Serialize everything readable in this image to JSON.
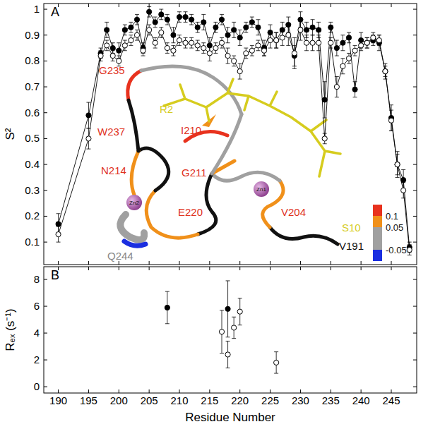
{
  "chart_data": [
    {
      "type": "line",
      "panel": "A",
      "y_label": "S²",
      "x": [
        190,
        195,
        197,
        198,
        199,
        200,
        201,
        202,
        203,
        204,
        205,
        206,
        207,
        208,
        209,
        210,
        211,
        212,
        213,
        214,
        215,
        216,
        217,
        218,
        219,
        220,
        221,
        222,
        223,
        224,
        225,
        226,
        227,
        228,
        229,
        230,
        231,
        232,
        233,
        234,
        235,
        236,
        237,
        238,
        239,
        240,
        241,
        242,
        243,
        244,
        245,
        246,
        247,
        248
      ],
      "series": [
        {
          "color": "#000000",
          "marker": "filled circle",
          "line_style": "solid",
          "values": [
            0.17,
            0.59,
            0.83,
            0.92,
            0.85,
            0.84,
            0.92,
            0.93,
            0.96,
            0.85,
            0.99,
            0.95,
            0.98,
            0.96,
            0.9,
            0.97,
            0.97,
            0.96,
            0.93,
            0.95,
            0.86,
            0.93,
            0.96,
            0.9,
            0.92,
            0.89,
            0.93,
            0.95,
            0.93,
            0.85,
            0.91,
            0.88,
            0.92,
            0.94,
            0.82,
            0.96,
            0.92,
            0.93,
            0.92,
            0.65,
            0.93,
            0.85,
            0.87,
            0.89,
            0.69,
            0.88,
            0.87,
            0.88,
            0.87,
            0.76,
            0.58,
            0.4,
            0.34,
            0.08
          ],
          "errors": [
            0.04,
            0.05,
            0.02,
            0.03,
            0.02,
            0.03,
            0.02,
            0.02,
            0.02,
            0.02,
            0.02,
            0.02,
            0.02,
            0.02,
            0.03,
            0.02,
            0.02,
            0.02,
            0.02,
            0.03,
            0.03,
            0.02,
            0.02,
            0.03,
            0.03,
            0.03,
            0.02,
            0.02,
            0.03,
            0.03,
            0.03,
            0.03,
            0.03,
            0.03,
            0.04,
            0.03,
            0.03,
            0.03,
            0.03,
            0.07,
            0.02,
            0.03,
            0.03,
            0.02,
            0.03,
            0.03,
            0.02,
            0.02,
            0.03,
            0.03,
            0.05,
            0.05,
            0.04,
            0.02
          ]
        },
        {
          "color": "#000000",
          "marker": "open circle",
          "line_style": "solid",
          "values": [
            0.13,
            0.5,
            0.82,
            0.86,
            0.82,
            0.8,
            0.86,
            0.88,
            0.9,
            0.84,
            0.92,
            0.87,
            0.91,
            0.85,
            0.84,
            0.88,
            0.87,
            0.87,
            0.86,
            0.85,
            0.83,
            0.85,
            0.87,
            0.82,
            0.8,
            0.76,
            0.83,
            0.84,
            0.86,
            0.84,
            0.88,
            0.88,
            0.89,
            0.9,
            0.83,
            0.92,
            0.87,
            0.87,
            0.87,
            0.5,
            0.87,
            0.7,
            0.78,
            0.81,
            0.84,
            0.86,
            0.87,
            0.89,
            0.88,
            0.76,
            0.57,
            0.4,
            0.3,
            0.07
          ],
          "errors": [
            0.03,
            0.04,
            0.02,
            0.02,
            0.02,
            0.02,
            0.02,
            0.02,
            0.02,
            0.02,
            0.02,
            0.02,
            0.02,
            0.02,
            0.02,
            0.02,
            0.02,
            0.02,
            0.02,
            0.02,
            0.03,
            0.02,
            0.02,
            0.03,
            0.02,
            0.03,
            0.02,
            0.02,
            0.02,
            0.02,
            0.03,
            0.03,
            0.03,
            0.04,
            0.06,
            0.04,
            0.03,
            0.03,
            0.03,
            0.02,
            0.02,
            0.04,
            0.03,
            0.02,
            0.02,
            0.02,
            0.02,
            0.02,
            0.02,
            0.02,
            0.04,
            0.04,
            0.03,
            0.02
          ]
        }
      ],
      "xlim": [
        187.6,
        249.2
      ],
      "xticks": [
        190,
        195,
        200,
        205,
        210,
        215,
        220,
        225,
        230,
        235,
        240,
        245
      ],
      "ylim": [
        0.013,
        1.022
      ],
      "yticks": [
        0.1,
        0.2,
        0.3,
        0.4,
        0.5,
        0.6,
        0.7,
        0.8,
        0.9,
        1
      ],
      "tick_labels": "y",
      "inset": {
        "labels": [
          {
            "text": "G235",
            "color": "#e0321e"
          },
          {
            "text": "R2",
            "color": "#d6cc1e"
          },
          {
            "text": "W237",
            "color": "#e0321e"
          },
          {
            "text": "I210",
            "color": "#e0321e"
          },
          {
            "text": "N214",
            "color": "#e0321e"
          },
          {
            "text": "G211",
            "color": "#e0321e"
          },
          {
            "text": "E220",
            "color": "#e0321e"
          },
          {
            "text": "V204",
            "color": "#e0321e"
          },
          {
            "text": "S10",
            "color": "#d6cc1e"
          },
          {
            "text": "V191",
            "color": "#111111"
          },
          {
            "text": "Q244",
            "color": "#888888"
          }
        ],
        "zinc": [
          "Zn1",
          "Zn2"
        ],
        "color_scale": {
          "lim": [
            -0.1,
            0.15
          ],
          "ticks": [
            -0.05,
            0.05,
            0.1
          ],
          "colors": [
            "#1a2ee0",
            "#a0a0a0",
            "#f0901a",
            "#e8321e"
          ]
        }
      }
    },
    {
      "type": "scatter",
      "panel": "B",
      "x_label": "Residue Number",
      "y_label": "Rₑₓ (s⁻¹)",
      "series": [
        {
          "color": "#000000",
          "marker": "filled circle",
          "x": [
            208,
            218
          ],
          "values": [
            5.9,
            5.8
          ],
          "errors": [
            1.2,
            2.1
          ]
        },
        {
          "color": "#000000",
          "marker": "open circle",
          "x": [
            217,
            218,
            219,
            220,
            226
          ],
          "values": [
            4.1,
            2.4,
            4.4,
            5.6,
            1.8
          ],
          "errors": [
            1.6,
            1.0,
            0.8,
            1.0,
            0.8
          ]
        }
      ],
      "xlim": [
        187.6,
        249.2
      ],
      "xticks": [
        190,
        195,
        200,
        205,
        210,
        215,
        220,
        225,
        230,
        235,
        240,
        245
      ],
      "ylim": [
        -0.47,
        8.95
      ],
      "yticks": [
        0,
        2,
        4,
        6,
        8
      ]
    }
  ]
}
